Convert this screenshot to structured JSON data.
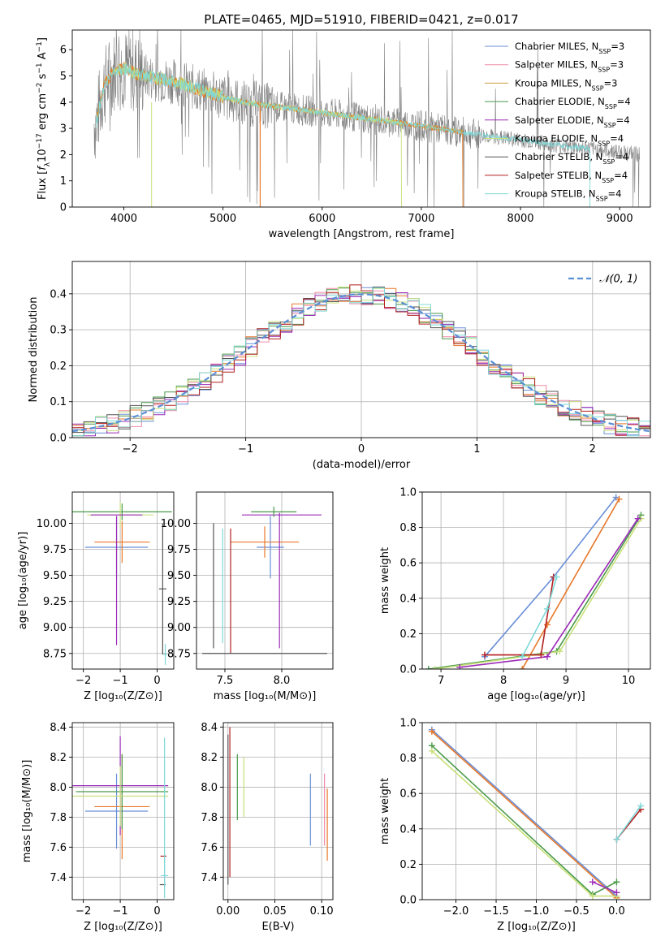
{
  "colors": {
    "miles_chabrier": "#6a8fd8",
    "miles_salpeter": "#f08aa8",
    "miles_kroupa": "#c8a040",
    "elodie_chabrier": "#4a9a4a",
    "elodie_salpeter": "#9c2bb8",
    "elodie_kroupa": "#c8e07a",
    "stelib_chabrier": "#555555",
    "stelib_salpeter": "#b31f1f",
    "stelib_kroupa": "#7fd8d8",
    "orange": "#e8782a",
    "data_gray": "#808080",
    "normal_curve": "#5b8fd6"
  },
  "chart_data": [
    {
      "id": "spectrum",
      "type": "line",
      "title": "PLATE=0465, MJD=51910, FIBERID=0421, z=0.017",
      "xlabel": "wavelength [Angstrom, rest frame]",
      "ylabel_parts": [
        "Flux [",
        "f",
        "λ",
        "10",
        "−17",
        " erg cm",
        "−2",
        " s",
        "−1",
        " A",
        "−1",
        "]"
      ],
      "xlim": [
        3480,
        9310
      ],
      "ylim": [
        0,
        6.75
      ],
      "xticks": [
        4000,
        5000,
        6000,
        7000,
        8000,
        9000
      ],
      "yticks": [
        0,
        1,
        2,
        3,
        4,
        5,
        6
      ],
      "continuum": [
        [
          3720,
          3.2
        ],
        [
          3800,
          4.6
        ],
        [
          3900,
          5.2
        ],
        [
          4000,
          5.3
        ],
        [
          4200,
          5.0
        ],
        [
          4500,
          4.8
        ],
        [
          5000,
          4.2
        ],
        [
          5200,
          4.0
        ],
        [
          5500,
          3.85
        ],
        [
          6000,
          3.6
        ],
        [
          6500,
          3.35
        ],
        [
          7000,
          3.1
        ],
        [
          7500,
          2.8
        ],
        [
          8000,
          2.55
        ],
        [
          8500,
          2.3
        ],
        [
          9000,
          2.1
        ],
        [
          9200,
          2.0
        ]
      ],
      "legend": [
        {
          "label": "Chabrier MILES, N",
          "sub": "SSP",
          "suffix": "=3",
          "color": "#6a8fd8"
        },
        {
          "label": "Salpeter MILES, N",
          "sub": "SSP",
          "suffix": "=3",
          "color": "#f08aa8"
        },
        {
          "label": "Kroupa MILES, N",
          "sub": "SSP",
          "suffix": "=3",
          "color": "#c8a040"
        },
        {
          "label": "Chabrier ELODIE, N",
          "sub": "SSP",
          "suffix": "=4",
          "color": "#4a9a4a"
        },
        {
          "label": "Salpeter ELODIE, N",
          "sub": "SSP",
          "suffix": "=4",
          "color": "#9c2bb8"
        },
        {
          "label": "Kroupa ELODIE, N",
          "sub": "SSP",
          "suffix": "=4",
          "color": "#c8e07a"
        },
        {
          "label": "Chabrier STELIB, N",
          "sub": "SSP",
          "suffix": "=4",
          "color": "#555555"
        },
        {
          "label": "Salpeter STELIB, N",
          "sub": "SSP",
          "suffix": "=4",
          "color": "#b31f1f"
        },
        {
          "label": "Kroupa STELIB, N",
          "sub": "SSP",
          "suffix": "=4",
          "color": "#7fd8d8"
        }
      ],
      "model_ends": [
        {
          "name": "MILES",
          "x": [
            3700,
            7420
          ],
          "color": "#e8782a"
        },
        {
          "name": "ELODIE",
          "x": [
            4000,
            6800
          ],
          "color": "#c8e07a"
        },
        {
          "name": "STELIB",
          "x": [
            3720,
            8650
          ],
          "color": "#7fd8d8"
        }
      ]
    },
    {
      "id": "residuals",
      "type": "area",
      "xlabel": "(data-model)/error",
      "ylabel": "Normed distribution",
      "xlim": [
        -2.5,
        2.5
      ],
      "ylim": [
        0,
        0.49
      ],
      "xticks": [
        -2,
        -1,
        0,
        1,
        2
      ],
      "yticks": [
        0.0,
        0.1,
        0.2,
        0.3,
        0.4
      ],
      "legend": "𝒩(0, 1)",
      "legend_position": "top-right",
      "grid": true
    },
    {
      "id": "z_age",
      "type": "scatter",
      "xlabel": "Z [log₁₀(Z/Z⊙)]",
      "ylabel": "age  [log₁₀(age/yr)]",
      "xlim": [
        -2.3,
        0.45
      ],
      "ylim": [
        8.6,
        10.3
      ],
      "xticks": [
        -2,
        -1,
        0
      ],
      "yticks": [
        8.75,
        9.0,
        9.25,
        9.5,
        9.75,
        10.0
      ],
      "points": [
        {
          "x": -1.1,
          "xerr": 0.85,
          "y": 9.77,
          "yerr": 0.3,
          "color": "#6a8fd8"
        },
        {
          "x": -0.95,
          "xerr": 0.75,
          "y": 9.82,
          "yerr": 0.2,
          "color": "#e8782a"
        },
        {
          "x": -0.95,
          "xerr": 1.35,
          "y": 10.11,
          "yerr": 0.08,
          "color": "#4a9a4a"
        },
        {
          "x": -1.0,
          "xerr": 0.9,
          "y": 10.08,
          "yerr": 0.12,
          "color": "#c8e07a"
        },
        {
          "x": -1.1,
          "xerr": 0.7,
          "y": 10.08,
          "yerr": 0.0,
          "color": "#9c2bb8"
        },
        {
          "x": -1.1,
          "xerr": 0.0,
          "y": 9.45,
          "yerr": 0.62,
          "color": "#9c2bb8"
        },
        {
          "x": 0.15,
          "xerr": 0.1,
          "y": 9.37,
          "yerr": 0.63,
          "color": "#555555"
        },
        {
          "x": 0.22,
          "xerr": 0.05,
          "y": 8.74,
          "yerr": 0.1,
          "color": "#7fd8d8"
        }
      ]
    },
    {
      "id": "mass_age",
      "type": "scatter",
      "xlabel": "mass [log₁₀(M/M⊙)]",
      "ylabel": "",
      "xlim": [
        7.25,
        8.45
      ],
      "ylim": [
        8.6,
        10.3
      ],
      "xticks": [
        7.5,
        8.0
      ],
      "yticks": [
        8.75,
        9.0,
        9.25,
        9.5,
        9.75,
        10.0
      ],
      "points": [
        {
          "x": 7.9,
          "xerr": 0.12,
          "y": 9.77,
          "yerr": 0.3,
          "color": "#6a8fd8"
        },
        {
          "x": 7.85,
          "xerr": 0.3,
          "y": 9.82,
          "yerr": 0.15,
          "color": "#e8782a"
        },
        {
          "x": 8.0,
          "xerr": 0.35,
          "y": 10.08,
          "yerr": 0.0,
          "color": "#9c2bb8"
        },
        {
          "x": 7.98,
          "xerr": 0.0,
          "y": 9.45,
          "yerr": 0.65,
          "color": "#9c2bb8"
        },
        {
          "x": 7.93,
          "xerr": 0.2,
          "y": 10.11,
          "yerr": 0.05,
          "color": "#4a9a4a"
        },
        {
          "x": 7.4,
          "xerr": 0.0,
          "y": 9.4,
          "yerr": 0.6,
          "color": "#555555"
        },
        {
          "x": 7.48,
          "xerr": 0.0,
          "y": 9.4,
          "yerr": 0.55,
          "color": "#7fd8d8"
        },
        {
          "x": 7.55,
          "xerr": 0.0,
          "y": 9.35,
          "yerr": 0.6,
          "color": "#b31f1f"
        },
        {
          "x": 7.85,
          "xerr": 0.55,
          "y": 8.75,
          "yerr": 0.0,
          "color": "#555555"
        }
      ]
    },
    {
      "id": "age_weight",
      "type": "line",
      "xlabel": "age  [log₁₀(age/yr)]",
      "ylabel": "mass weight",
      "xlim": [
        6.7,
        10.35
      ],
      "ylim": [
        0,
        1.0
      ],
      "xticks": [
        7,
        8,
        9,
        10
      ],
      "yticks": [
        0.0,
        0.2,
        0.4,
        0.6,
        0.8,
        1.0
      ],
      "series": [
        {
          "color": "#6a8fd8",
          "points": [
            [
              7.7,
              0.07
            ],
            [
              8.8,
              0.52
            ],
            [
              9.8,
              0.97
            ]
          ]
        },
        {
          "color": "#e8782a",
          "points": [
            [
              8.3,
              0.0
            ],
            [
              8.7,
              0.25
            ],
            [
              9.85,
              0.96
            ]
          ]
        },
        {
          "color": "#4a9a4a",
          "points": [
            [
              6.8,
              0.0
            ],
            [
              8.85,
              0.1
            ],
            [
              10.2,
              0.87
            ]
          ]
        },
        {
          "color": "#c8e07a",
          "points": [
            [
              6.9,
              0.0
            ],
            [
              8.9,
              0.1
            ],
            [
              10.2,
              0.85
            ]
          ]
        },
        {
          "color": "#9c2bb8",
          "points": [
            [
              7.3,
              0.01
            ],
            [
              8.7,
              0.07
            ],
            [
              10.15,
              0.85
            ]
          ]
        },
        {
          "color": "#b31f1f",
          "points": [
            [
              7.7,
              0.08
            ],
            [
              8.6,
              0.08
            ],
            [
              8.8,
              0.52
            ]
          ]
        },
        {
          "color": "#7fd8d8",
          "points": [
            [
              8.3,
              0.07
            ],
            [
              8.7,
              0.34
            ],
            [
              8.85,
              0.52
            ]
          ]
        }
      ]
    },
    {
      "id": "z_mass",
      "type": "scatter",
      "xlabel": "Z [log₁₀(Z/Z⊙)]",
      "ylabel": "mass [log₁₀(M/M⊙)]",
      "xlim": [
        -2.3,
        0.45
      ],
      "ylim": [
        7.25,
        8.43
      ],
      "xticks": [
        -2,
        -1,
        0
      ],
      "yticks": [
        7.4,
        7.6,
        7.8,
        8.0,
        8.2,
        8.4
      ],
      "points": [
        {
          "x": -1.1,
          "xerr": 0.85,
          "y": 7.84,
          "yerr": 0.25,
          "color": "#6a8fd8"
        },
        {
          "x": -0.95,
          "xerr": 0.75,
          "y": 7.87,
          "yerr": 0.35,
          "color": "#e8782a"
        },
        {
          "x": -1.0,
          "xerr": 1.3,
          "y": 8.01,
          "yerr": 0.33,
          "color": "#9c2bb8"
        },
        {
          "x": -0.95,
          "xerr": 1.25,
          "y": 7.97,
          "yerr": 0.25,
          "color": "#4a9a4a"
        },
        {
          "x": -1.0,
          "xerr": 1.3,
          "y": 7.94,
          "yerr": 0.2,
          "color": "#c8e07a"
        },
        {
          "x": 0.2,
          "xerr": 0.1,
          "y": 7.41,
          "yerr": 0.15,
          "color": "#7fd8d8"
        },
        {
          "x": 0.17,
          "xerr": 0.08,
          "y": 7.54,
          "yerr": 0.0,
          "color": "#b31f1f"
        },
        {
          "x": 0.15,
          "xerr": 0.08,
          "y": 7.35,
          "yerr": 0.0,
          "color": "#555555"
        },
        {
          "x": 0.2,
          "xerr": 0.0,
          "y": 7.83,
          "yerr": 0.5,
          "color": "#7fd8d8"
        }
      ]
    },
    {
      "id": "ebv_mass",
      "type": "scatter",
      "xlabel": "E(B-V)",
      "ylabel": "",
      "xlim": [
        -0.005,
        0.112
      ],
      "ylim": [
        7.25,
        8.43
      ],
      "xticks": [
        0.0,
        0.05,
        0.1
      ],
      "yticks": [
        7.4,
        7.6,
        7.8,
        8.0,
        8.2,
        8.4
      ],
      "points": [
        {
          "x": 0.0,
          "y": 7.85,
          "yerr": 0.5,
          "color": "#555555"
        },
        {
          "x": 0.002,
          "y": 7.9,
          "yerr": 0.5,
          "color": "#b31f1f"
        },
        {
          "x": 0.01,
          "y": 8.0,
          "yerr": 0.22,
          "color": "#4a9a4a"
        },
        {
          "x": 0.017,
          "y": 8.0,
          "yerr": 0.2,
          "color": "#c8e07a"
        },
        {
          "x": 0.088,
          "y": 7.85,
          "yerr": 0.24,
          "color": "#6a8fd8"
        },
        {
          "x": 0.103,
          "y": 7.85,
          "yerr": 0.24,
          "color": "#f08aa8"
        },
        {
          "x": 0.106,
          "y": 7.75,
          "yerr": 0.24,
          "color": "#e8782a"
        }
      ]
    },
    {
      "id": "z_weight",
      "type": "line",
      "xlabel": "Z [log₁₀(Z/Z⊙)]",
      "ylabel": "mass weight",
      "xlim": [
        -2.42,
        0.42
      ],
      "ylim": [
        0,
        1.0
      ],
      "xticks": [
        -2.0,
        -1.5,
        -1.0,
        -0.5,
        0.0
      ],
      "yticks": [
        0.0,
        0.2,
        0.4,
        0.6,
        0.8,
        1.0
      ],
      "series": [
        {
          "color": "#6a8fd8",
          "points": [
            [
              -2.3,
              0.96
            ],
            [
              0.0,
              0.02
            ]
          ]
        },
        {
          "color": "#e8782a",
          "points": [
            [
              -2.3,
              0.95
            ],
            [
              0.0,
              0.01
            ]
          ]
        },
        {
          "color": "#4a9a4a",
          "points": [
            [
              -2.3,
              0.87
            ],
            [
              -0.3,
              0.03
            ],
            [
              0.0,
              0.1
            ]
          ]
        },
        {
          "color": "#c8e07a",
          "points": [
            [
              -2.3,
              0.84
            ],
            [
              -0.3,
              0.02
            ],
            [
              0.0,
              0.02
            ]
          ]
        },
        {
          "color": "#9c2bb8",
          "points": [
            [
              -0.3,
              0.1
            ],
            [
              0.0,
              0.04
            ]
          ]
        },
        {
          "color": "#b31f1f",
          "points": [
            [
              0.0,
              0.34
            ],
            [
              0.3,
              0.51
            ]
          ]
        },
        {
          "color": "#7fd8d8",
          "points": [
            [
              0.0,
              0.34
            ],
            [
              0.3,
              0.53
            ]
          ]
        }
      ]
    }
  ]
}
